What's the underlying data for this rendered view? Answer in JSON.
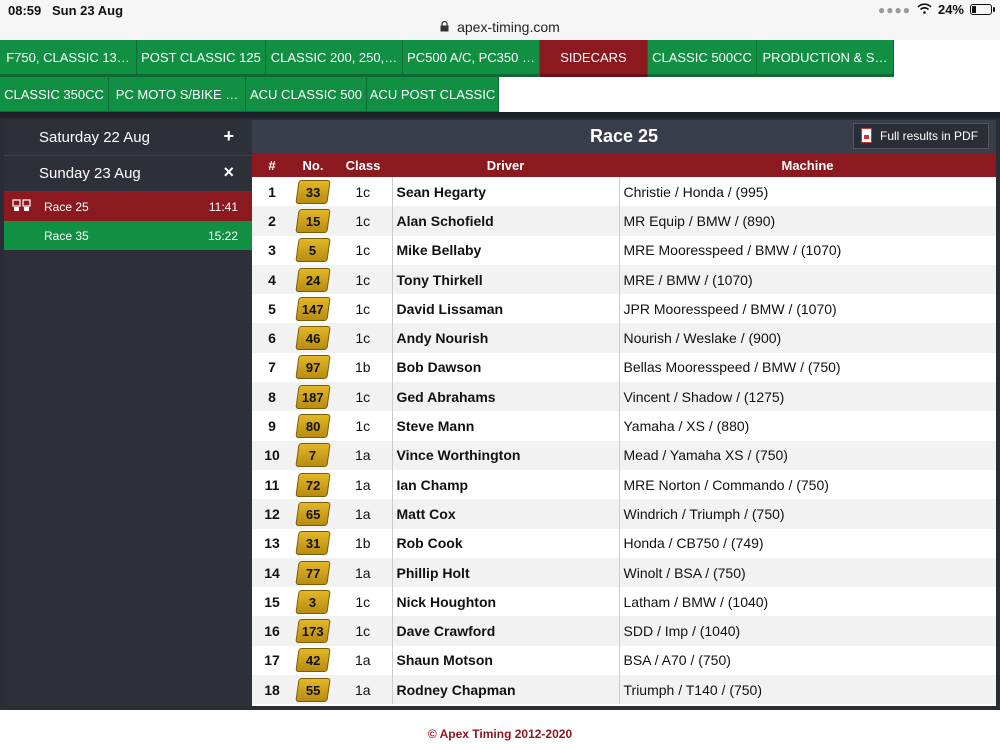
{
  "statusbar": {
    "time": "08:59",
    "date": "Sun 23 Aug",
    "url": "apex-timing.com",
    "battery": "24%",
    "battery_level": 0.24
  },
  "tabs_row1": [
    "F750, CLASSIC 13…",
    "POST CLASSIC 125",
    "CLASSIC 200, 250,…",
    "PC500 A/C, PC350 …",
    "SIDECARS",
    "CLASSIC 500CC",
    "PRODUCTION & S…"
  ],
  "tabs_row2": [
    "CLASSIC 350CC",
    "PC MOTO S/BIKE …",
    "ACU CLASSIC 500",
    "ACU POST CLASSIC"
  ],
  "active_tab": "SIDECARS",
  "sidebar": {
    "days": [
      {
        "label": "Saturday 22 Aug",
        "control": "+"
      },
      {
        "label": "Sunday 23 Aug",
        "control": "×"
      }
    ],
    "races": [
      {
        "label": "Race 25",
        "time": "11:41"
      },
      {
        "label": "Race 35",
        "time": "15:22"
      }
    ]
  },
  "panel": {
    "title": "Race 25",
    "pdf_label": "Full results in PDF",
    "headers": {
      "pos": "#",
      "no": "No.",
      "cls": "Class",
      "driver": "Driver",
      "machine": "Machine"
    }
  },
  "results": [
    {
      "pos": "1",
      "no": "33",
      "cls": "1c",
      "driver": "Sean Hegarty",
      "machine": "Christie / Honda / (995)"
    },
    {
      "pos": "2",
      "no": "15",
      "cls": "1c",
      "driver": "Alan Schofield",
      "machine": "MR Equip / BMW / (890)"
    },
    {
      "pos": "3",
      "no": "5",
      "cls": "1c",
      "driver": "Mike Bellaby",
      "machine": "MRE Mooresspeed / BMW / (1070)"
    },
    {
      "pos": "4",
      "no": "24",
      "cls": "1c",
      "driver": "Tony Thirkell",
      "machine": "MRE / BMW / (1070)"
    },
    {
      "pos": "5",
      "no": "147",
      "cls": "1c",
      "driver": "David Lissaman",
      "machine": "JPR Mooresspeed / BMW / (1070)"
    },
    {
      "pos": "6",
      "no": "46",
      "cls": "1c",
      "driver": "Andy Nourish",
      "machine": "Nourish / Weslake / (900)"
    },
    {
      "pos": "7",
      "no": "97",
      "cls": "1b",
      "driver": "Bob Dawson",
      "machine": "Bellas Mooresspeed / BMW / (750)"
    },
    {
      "pos": "8",
      "no": "187",
      "cls": "1c",
      "driver": "Ged Abrahams",
      "machine": "Vincent / Shadow / (1275)"
    },
    {
      "pos": "9",
      "no": "80",
      "cls": "1c",
      "driver": "Steve Mann",
      "machine": "Yamaha / XS / (880)"
    },
    {
      "pos": "10",
      "no": "7",
      "cls": "1a",
      "driver": "Vince Worthington",
      "machine": "Mead / Yamaha XS / (750)"
    },
    {
      "pos": "11",
      "no": "72",
      "cls": "1a",
      "driver": "Ian Champ",
      "machine": "MRE Norton / Commando / (750)"
    },
    {
      "pos": "12",
      "no": "65",
      "cls": "1a",
      "driver": "Matt Cox",
      "machine": "Windrich / Triumph / (750)"
    },
    {
      "pos": "13",
      "no": "31",
      "cls": "1b",
      "driver": "Rob Cook",
      "machine": "Honda / CB750 / (749)"
    },
    {
      "pos": "14",
      "no": "77",
      "cls": "1a",
      "driver": "Phillip Holt",
      "machine": "Winolt / BSA / (750)"
    },
    {
      "pos": "15",
      "no": "3",
      "cls": "1c",
      "driver": "Nick Houghton",
      "machine": "Latham / BMW / (1040)"
    },
    {
      "pos": "16",
      "no": "173",
      "cls": "1c",
      "driver": "Dave Crawford",
      "machine": "SDD / Imp / (1040)"
    },
    {
      "pos": "17",
      "no": "42",
      "cls": "1a",
      "driver": "Shaun Motson",
      "machine": "BSA / A70 / (750)"
    },
    {
      "pos": "18",
      "no": "55",
      "cls": "1a",
      "driver": "Rodney Chapman",
      "machine": "Triumph / T140 / (750)"
    }
  ],
  "footer": "© Apex Timing 2012-2020",
  "colors": {
    "green": "#119044",
    "red": "#8c1820",
    "dark": "#2a2d35"
  },
  "icons": {
    "lock": "lock-icon",
    "wifi": "wifi-icon",
    "battery": "battery-icon",
    "pdf": "pdf-icon",
    "race": "race-flag-icon"
  }
}
